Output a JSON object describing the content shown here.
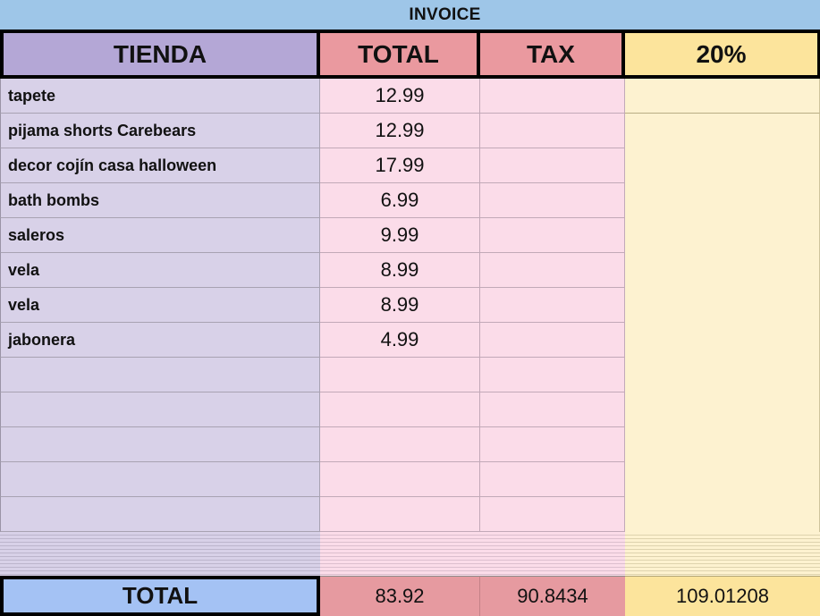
{
  "title": "INVOICE",
  "columns": {
    "tienda": "TIENDA",
    "total": "TOTAL",
    "tax": "TAX",
    "pct": "20%"
  },
  "items": [
    {
      "name": "tapete",
      "total": "12.99",
      "tax": ""
    },
    {
      "name": "pijama shorts Carebears",
      "total": "12.99",
      "tax": ""
    },
    {
      "name": "decor cojín casa halloween",
      "total": "17.99",
      "tax": ""
    },
    {
      "name": "bath bombs",
      "total": "6.99",
      "tax": ""
    },
    {
      "name": "saleros",
      "total": "9.99",
      "tax": ""
    },
    {
      "name": "vela",
      "total": "8.99",
      "tax": ""
    },
    {
      "name": "vela",
      "total": "8.99",
      "tax": ""
    },
    {
      "name": "jabonera",
      "total": "4.99",
      "tax": ""
    }
  ],
  "empty_row_count": 5,
  "totals": {
    "label": "TOTAL",
    "total": "83.92",
    "tax": "90.8434",
    "pct": "109.01208"
  },
  "colors": {
    "title_band": "#9ec6e8",
    "header_tienda": "#b4a7d6",
    "header_total_tax": "#ea999f",
    "header_pct": "#fce49c",
    "body_tienda": "#d8d1e8",
    "body_total_tax": "#fbdce9",
    "body_pct": "#fdf2d0",
    "total_row_label": "#a4c2f4",
    "total_row_salmon": "#e69aa0",
    "total_row_yellow": "#fce49c",
    "border_black": "#000000"
  }
}
